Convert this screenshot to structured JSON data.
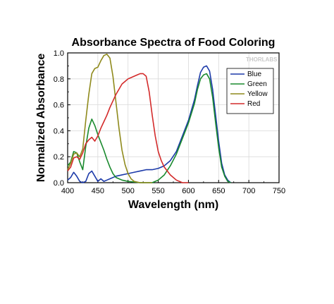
{
  "chart_data": {
    "type": "line",
    "title": "Absorbance Spectra of Food Coloring",
    "xlabel": "Wavelength (nm)",
    "ylabel": "Normalized Absorbance",
    "xlim": [
      400,
      750
    ],
    "ylim": [
      0.0,
      1.0
    ],
    "x_ticks": [
      "400",
      "450",
      "500",
      "550",
      "600",
      "650",
      "700",
      "750"
    ],
    "y_ticks": [
      "0.0",
      "0.2",
      "0.4",
      "0.6",
      "0.8",
      "1.0"
    ],
    "grid": true,
    "legend_position": "top-right",
    "watermark": "THORLABS",
    "series": [
      {
        "name": "Blue",
        "color": "#1c3aa9",
        "points": [
          [
            400,
            0.02
          ],
          [
            405,
            0.04
          ],
          [
            410,
            0.08
          ],
          [
            415,
            0.05
          ],
          [
            420,
            0.01
          ],
          [
            425,
            0.0
          ],
          [
            430,
            0.01
          ],
          [
            435,
            0.07
          ],
          [
            440,
            0.09
          ],
          [
            445,
            0.05
          ],
          [
            450,
            0.01
          ],
          [
            455,
            0.03
          ],
          [
            460,
            0.01
          ],
          [
            465,
            0.02
          ],
          [
            470,
            0.03
          ],
          [
            480,
            0.05
          ],
          [
            490,
            0.06
          ],
          [
            500,
            0.07
          ],
          [
            510,
            0.08
          ],
          [
            520,
            0.09
          ],
          [
            530,
            0.1
          ],
          [
            540,
            0.1
          ],
          [
            550,
            0.11
          ],
          [
            560,
            0.13
          ],
          [
            570,
            0.17
          ],
          [
            580,
            0.24
          ],
          [
            590,
            0.36
          ],
          [
            600,
            0.48
          ],
          [
            610,
            0.64
          ],
          [
            615,
            0.75
          ],
          [
            620,
            0.85
          ],
          [
            625,
            0.89
          ],
          [
            630,
            0.9
          ],
          [
            635,
            0.86
          ],
          [
            640,
            0.72
          ],
          [
            645,
            0.52
          ],
          [
            650,
            0.32
          ],
          [
            655,
            0.15
          ],
          [
            660,
            0.06
          ],
          [
            665,
            0.02
          ],
          [
            670,
            0.0
          ]
        ]
      },
      {
        "name": "Green",
        "color": "#1a8a2e",
        "points": [
          [
            400,
            0.13
          ],
          [
            405,
            0.16
          ],
          [
            410,
            0.24
          ],
          [
            415,
            0.23
          ],
          [
            420,
            0.16
          ],
          [
            425,
            0.1
          ],
          [
            430,
            0.28
          ],
          [
            435,
            0.42
          ],
          [
            440,
            0.49
          ],
          [
            445,
            0.44
          ],
          [
            450,
            0.37
          ],
          [
            455,
            0.31
          ],
          [
            460,
            0.25
          ],
          [
            465,
            0.18
          ],
          [
            470,
            0.12
          ],
          [
            475,
            0.07
          ],
          [
            480,
            0.04
          ],
          [
            490,
            0.02
          ],
          [
            500,
            0.01
          ],
          [
            520,
            0.0
          ],
          [
            540,
            0.0
          ],
          [
            550,
            0.02
          ],
          [
            560,
            0.06
          ],
          [
            570,
            0.13
          ],
          [
            580,
            0.22
          ],
          [
            590,
            0.34
          ],
          [
            600,
            0.46
          ],
          [
            610,
            0.61
          ],
          [
            615,
            0.72
          ],
          [
            620,
            0.8
          ],
          [
            625,
            0.83
          ],
          [
            630,
            0.84
          ],
          [
            635,
            0.8
          ],
          [
            640,
            0.66
          ],
          [
            645,
            0.46
          ],
          [
            650,
            0.27
          ],
          [
            655,
            0.12
          ],
          [
            660,
            0.05
          ],
          [
            665,
            0.01
          ],
          [
            670,
            0.0
          ]
        ]
      },
      {
        "name": "Yellow",
        "color": "#8f8a1c",
        "points": [
          [
            400,
            0.1
          ],
          [
            405,
            0.15
          ],
          [
            410,
            0.22
          ],
          [
            415,
            0.23
          ],
          [
            420,
            0.2
          ],
          [
            425,
            0.26
          ],
          [
            430,
            0.48
          ],
          [
            435,
            0.68
          ],
          [
            440,
            0.84
          ],
          [
            445,
            0.88
          ],
          [
            450,
            0.89
          ],
          [
            455,
            0.94
          ],
          [
            460,
            0.98
          ],
          [
            465,
            0.99
          ],
          [
            470,
            0.96
          ],
          [
            475,
            0.82
          ],
          [
            480,
            0.62
          ],
          [
            485,
            0.42
          ],
          [
            490,
            0.25
          ],
          [
            495,
            0.14
          ],
          [
            500,
            0.07
          ],
          [
            505,
            0.03
          ],
          [
            510,
            0.01
          ],
          [
            520,
            0.0
          ],
          [
            540,
            0.0
          ]
        ]
      },
      {
        "name": "Red",
        "color": "#d32a2a",
        "points": [
          [
            400,
            0.09
          ],
          [
            405,
            0.12
          ],
          [
            410,
            0.19
          ],
          [
            415,
            0.2
          ],
          [
            420,
            0.18
          ],
          [
            425,
            0.23
          ],
          [
            430,
            0.3
          ],
          [
            435,
            0.33
          ],
          [
            440,
            0.35
          ],
          [
            445,
            0.32
          ],
          [
            450,
            0.36
          ],
          [
            455,
            0.42
          ],
          [
            460,
            0.47
          ],
          [
            465,
            0.52
          ],
          [
            470,
            0.58
          ],
          [
            475,
            0.63
          ],
          [
            480,
            0.68
          ],
          [
            485,
            0.72
          ],
          [
            490,
            0.76
          ],
          [
            495,
            0.78
          ],
          [
            500,
            0.8
          ],
          [
            505,
            0.81
          ],
          [
            510,
            0.82
          ],
          [
            515,
            0.83
          ],
          [
            520,
            0.84
          ],
          [
            525,
            0.84
          ],
          [
            530,
            0.82
          ],
          [
            535,
            0.7
          ],
          [
            540,
            0.52
          ],
          [
            545,
            0.36
          ],
          [
            550,
            0.24
          ],
          [
            555,
            0.17
          ],
          [
            560,
            0.12
          ],
          [
            570,
            0.06
          ],
          [
            580,
            0.02
          ],
          [
            590,
            0.0
          ],
          [
            600,
            0.0
          ]
        ]
      }
    ]
  }
}
